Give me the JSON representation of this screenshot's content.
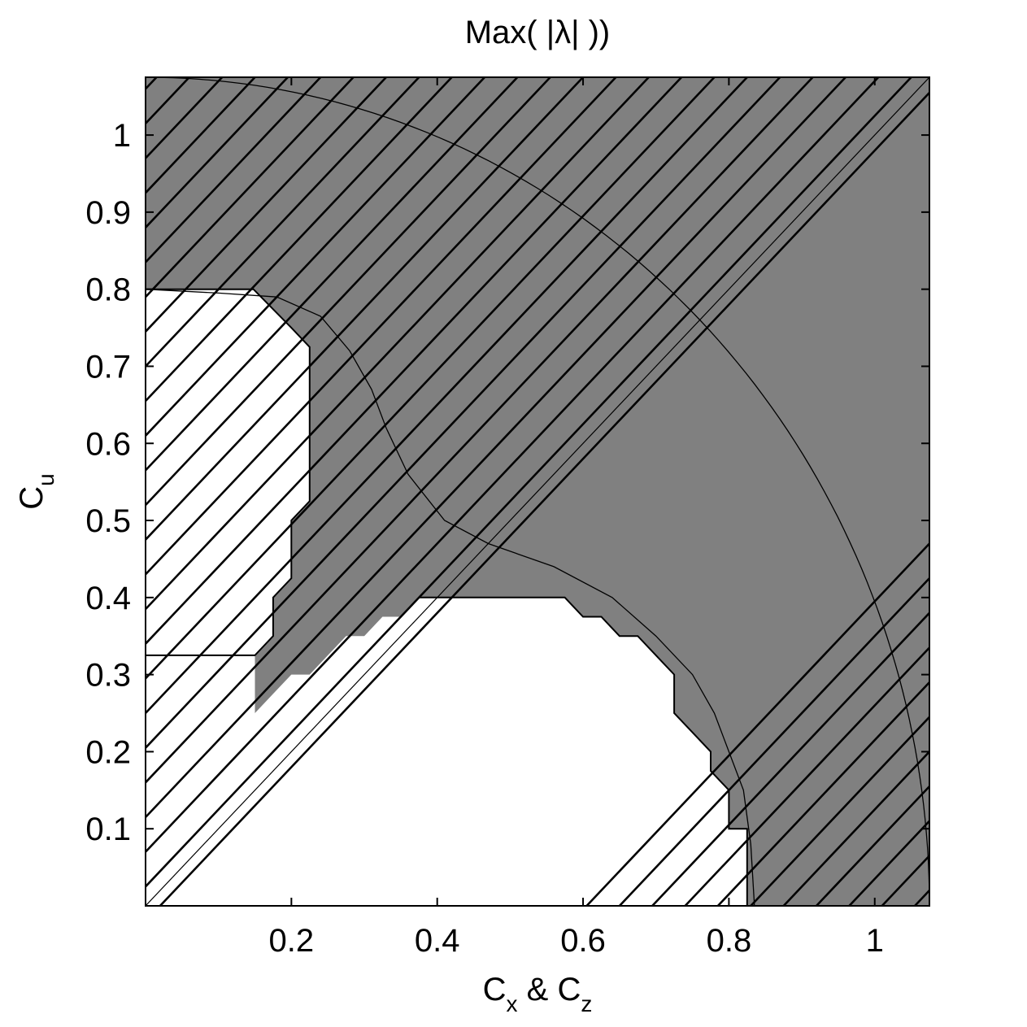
{
  "chart_data": {
    "type": "area",
    "title": "Max( |λ| ))",
    "xlabel": {
      "main": "C",
      "sub1": "x",
      "mid": " & C",
      "sub2": "z"
    },
    "ylabel": {
      "main": "C",
      "sub": "u"
    },
    "xlim": [
      0,
      1.075
    ],
    "ylim": [
      0,
      1.075
    ],
    "xticks": [
      0.2,
      0.4,
      0.6,
      0.8,
      1
    ],
    "xtick_labels": [
      "0.2",
      "0.4",
      "0.6",
      "0.8",
      "1"
    ],
    "yticks": [
      0.1,
      0.2,
      0.3,
      0.4,
      0.5,
      0.6,
      0.7,
      0.8,
      0.9,
      1
    ],
    "ytick_labels": [
      "0.1",
      "0.2",
      "0.3",
      "0.4",
      "0.5",
      "0.6",
      "0.7",
      "0.8",
      "0.9",
      "1"
    ],
    "grid": false,
    "colors": {
      "shaded": "#808080",
      "unshaded": "#ffffff",
      "line": "#000000"
    },
    "regions": {
      "white_top_left": [
        [
          0,
          0.8
        ],
        [
          0.148,
          0.8
        ],
        [
          0.2,
          0.75
        ],
        [
          0.225,
          0.725
        ],
        [
          0.225,
          0.525
        ],
        [
          0.2,
          0.5
        ],
        [
          0.2,
          0.425
        ],
        [
          0.175,
          0.4
        ],
        [
          0.175,
          0.35
        ],
        [
          0.15,
          0.325
        ],
        [
          0,
          0.325
        ]
      ],
      "white_bottom": [
        [
          0.375,
          0.4
        ],
        [
          0.575,
          0.4
        ],
        [
          0.6,
          0.375
        ],
        [
          0.625,
          0.375
        ],
        [
          0.65,
          0.35
        ],
        [
          0.675,
          0.35
        ],
        [
          0.7,
          0.325
        ],
        [
          0.725,
          0.3
        ],
        [
          0.725,
          0.25
        ],
        [
          0.75,
          0.225
        ],
        [
          0.775,
          0.2
        ],
        [
          0.775,
          0.175
        ],
        [
          0.8,
          0.15
        ],
        [
          0.8,
          0.1
        ],
        [
          0.825,
          0.1
        ],
        [
          0.825,
          0
        ],
        [
          0,
          0
        ],
        [
          0,
          0.325
        ],
        [
          0.15,
          0.325
        ],
        [
          0.15,
          0.25
        ],
        [
          0.175,
          0.275
        ],
        [
          0.2,
          0.3
        ],
        [
          0.225,
          0.3
        ],
        [
          0.25,
          0.325
        ],
        [
          0.275,
          0.35
        ],
        [
          0.3,
          0.35
        ],
        [
          0.325,
          0.375
        ],
        [
          0.35,
          0.375
        ]
      ]
    },
    "hatch": {
      "angle_deg": 45,
      "spacing": 0.045
    },
    "diagonal": [
      [
        0,
        0
      ],
      [
        1.075,
        1.075
      ]
    ],
    "curves": {
      "outer_arc": {
        "center": [
          0,
          0
        ],
        "radius": 1.075
      },
      "inner_curve": [
        [
          0,
          0.8
        ],
        [
          0.1,
          0.795
        ],
        [
          0.18,
          0.79
        ],
        [
          0.24,
          0.765
        ],
        [
          0.28,
          0.72
        ],
        [
          0.31,
          0.67
        ],
        [
          0.33,
          0.62
        ],
        [
          0.36,
          0.56
        ],
        [
          0.41,
          0.5
        ],
        [
          0.47,
          0.47
        ],
        [
          0.56,
          0.44
        ],
        [
          0.64,
          0.4
        ],
        [
          0.7,
          0.35
        ],
        [
          0.75,
          0.3
        ],
        [
          0.78,
          0.25
        ],
        [
          0.8,
          0.2
        ],
        [
          0.82,
          0.15
        ],
        [
          0.83,
          0.08
        ],
        [
          0.835,
          0
        ]
      ]
    }
  }
}
